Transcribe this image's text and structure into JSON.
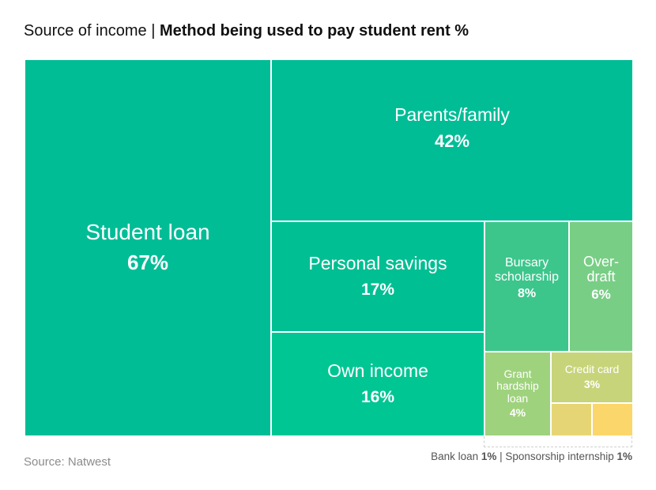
{
  "title": {
    "prefix": "Source of income | ",
    "main": "Method being used to pay student rent %"
  },
  "chart_data": {
    "type": "treemap",
    "title": "Source of income | Method being used to pay student rent %",
    "unit": "%",
    "items": [
      {
        "label": "Student loan",
        "value": 67,
        "value_label": "67%",
        "color": "#00BD96"
      },
      {
        "label": "Parents/family",
        "value": 42,
        "value_label": "42%",
        "color": "#00BD96"
      },
      {
        "label": "Personal savings",
        "value": 17,
        "value_label": "17%",
        "color": "#00BF93"
      },
      {
        "label": "Own income",
        "value": 16,
        "value_label": "16%",
        "color": "#00C693"
      },
      {
        "label": "Bursary scholarship",
        "value": 8,
        "value_label": "8%",
        "color": "#3CC68C"
      },
      {
        "label": "Over-draft",
        "value": 6,
        "value_label": "6%",
        "color": "#78CE85"
      },
      {
        "label": "Grant hardship loan",
        "value": 4,
        "value_label": "4%",
        "color": "#9FD27D"
      },
      {
        "label": "Credit card",
        "value": 3,
        "value_label": "3%",
        "color": "#C8D47A"
      },
      {
        "label": "Bank loan",
        "value": 1,
        "value_label": "1%",
        "color": "#E6D574"
      },
      {
        "label": "Sponsorship internship",
        "value": 1,
        "value_label": "1%",
        "color": "#FBD66B"
      }
    ]
  },
  "source": "Source: Natwest",
  "footnote": {
    "bank_label": "Bank loan ",
    "bank_value": "1%",
    "separator": " | ",
    "sponsor_label": "Sponsorship internship ",
    "sponsor_value": "1%"
  }
}
